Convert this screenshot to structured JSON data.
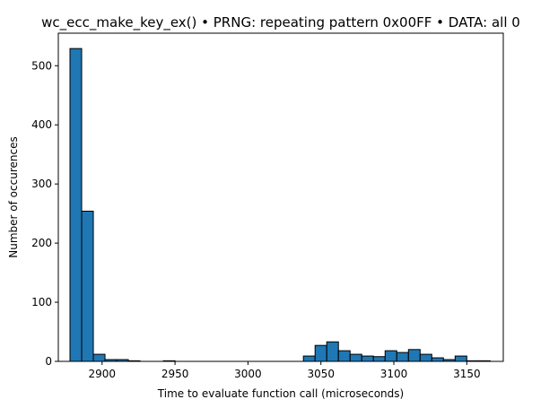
{
  "chart_data": {
    "type": "bar",
    "title": "wc_ecc_make_key_ex() • PRNG: repeating pattern 0x00FF • DATA: all 0",
    "xlabel": "Time to evaluate function call (microseconds)",
    "ylabel": "Number of occurences",
    "xlim": [
      2870,
      3175
    ],
    "ylim": [
      0,
      555
    ],
    "xticks": [
      2900,
      2950,
      3000,
      3050,
      3100,
      3150
    ],
    "yticks": [
      0,
      100,
      200,
      300,
      400,
      500
    ],
    "grid": false,
    "legend": "none",
    "bar_color": "#1f77b4",
    "edge_color": "#000000",
    "bins": [
      {
        "x0": 2878,
        "x1": 2886,
        "count": 529
      },
      {
        "x0": 2886,
        "x1": 2894,
        "count": 254
      },
      {
        "x0": 2894,
        "x1": 2902,
        "count": 12
      },
      {
        "x0": 2902,
        "x1": 2910,
        "count": 3
      },
      {
        "x0": 2910,
        "x1": 2918,
        "count": 3
      },
      {
        "x0": 2918,
        "x1": 2926,
        "count": 1
      },
      {
        "x0": 2926,
        "x1": 2934,
        "count": 0
      },
      {
        "x0": 2934,
        "x1": 2942,
        "count": 0
      },
      {
        "x0": 2942,
        "x1": 2950,
        "count": 1
      },
      {
        "x0": 2950,
        "x1": 2958,
        "count": 0
      },
      {
        "x0": 2958,
        "x1": 2966,
        "count": 0
      },
      {
        "x0": 2966,
        "x1": 2974,
        "count": 0
      },
      {
        "x0": 2974,
        "x1": 2982,
        "count": 0
      },
      {
        "x0": 2982,
        "x1": 2990,
        "count": 0
      },
      {
        "x0": 2990,
        "x1": 2998,
        "count": 0
      },
      {
        "x0": 2998,
        "x1": 3006,
        "count": 0
      },
      {
        "x0": 3006,
        "x1": 3014,
        "count": 0
      },
      {
        "x0": 3014,
        "x1": 3022,
        "count": 0
      },
      {
        "x0": 3022,
        "x1": 3030,
        "count": 0
      },
      {
        "x0": 3030,
        "x1": 3038,
        "count": 0
      },
      {
        "x0": 3038,
        "x1": 3046,
        "count": 9
      },
      {
        "x0": 3046,
        "x1": 3054,
        "count": 27
      },
      {
        "x0": 3054,
        "x1": 3062,
        "count": 33
      },
      {
        "x0": 3062,
        "x1": 3070,
        "count": 18
      },
      {
        "x0": 3070,
        "x1": 3078,
        "count": 12
      },
      {
        "x0": 3078,
        "x1": 3086,
        "count": 9
      },
      {
        "x0": 3086,
        "x1": 3094,
        "count": 8
      },
      {
        "x0": 3094,
        "x1": 3102,
        "count": 18
      },
      {
        "x0": 3102,
        "x1": 3110,
        "count": 15
      },
      {
        "x0": 3110,
        "x1": 3118,
        "count": 20
      },
      {
        "x0": 3118,
        "x1": 3126,
        "count": 12
      },
      {
        "x0": 3126,
        "x1": 3134,
        "count": 6
      },
      {
        "x0": 3134,
        "x1": 3142,
        "count": 3
      },
      {
        "x0": 3142,
        "x1": 3150,
        "count": 9
      },
      {
        "x0": 3150,
        "x1": 3158,
        "count": 1
      },
      {
        "x0": 3158,
        "x1": 3166,
        "count": 1
      }
    ]
  }
}
